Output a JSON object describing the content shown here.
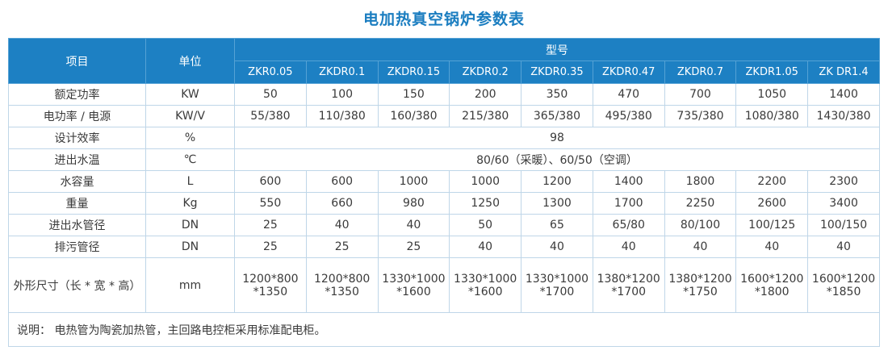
{
  "title": "电加热真空锅炉参数表",
  "table": {
    "header": {
      "item": "项目",
      "unit": "单位",
      "model_group": "型号",
      "models": [
        "ZKR0.05",
        "ZKDR0.1",
        "ZKDR0.15",
        "ZKDR0.2",
        "ZKDR0.35",
        "ZKDR0.47",
        "ZKDR0.7",
        "ZKDR1.05",
        "ZK DR1.4"
      ]
    },
    "rows": [
      {
        "item": "额定功率",
        "unit": "KW",
        "values": [
          "50",
          "100",
          "150",
          "200",
          "350",
          "470",
          "700",
          "1050",
          "1400"
        ]
      },
      {
        "item": "电功率 / 电源",
        "unit": "KW/V",
        "values": [
          "55/380",
          "110/380",
          "160/380",
          "215/380",
          "365/380",
          "495/380",
          "735/380",
          "1080/380",
          "1430/380"
        ]
      },
      {
        "item": "设计效率",
        "unit": "%",
        "span_value": "98"
      },
      {
        "item": "进出水温",
        "unit": "℃",
        "span_value": "80/60（采暖）、60/50（空调）"
      },
      {
        "item": "水容量",
        "unit": "L",
        "values": [
          "600",
          "600",
          "1000",
          "1000",
          "1200",
          "1400",
          "1800",
          "2200",
          "2300"
        ]
      },
      {
        "item": "重量",
        "unit": "Kg",
        "values": [
          "550",
          "660",
          "980",
          "1250",
          "1300",
          "1700",
          "2250",
          "2600",
          "3400"
        ]
      },
      {
        "item": "进出水管径",
        "unit": "DN",
        "values": [
          "25",
          "40",
          "40",
          "50",
          "65",
          "65/80",
          "80/100",
          "100/125",
          "100/150"
        ]
      },
      {
        "item": "排污管径",
        "unit": "DN",
        "values": [
          "25",
          "25",
          "25",
          "40",
          "40",
          "40",
          "40",
          "40",
          "40"
        ]
      },
      {
        "item": "外形尺寸（长 * 宽 * 高）",
        "unit": "mm",
        "values": [
          "1200*800\n*1350",
          "1200*800\n*1350",
          "1330*1000\n*1600",
          "1330*1000\n*1600",
          "1330*1000\n*1700",
          "1380*1200\n*1700",
          "1380*1200\n*1750",
          "1600*1200\n*1800",
          "1600*1200\n*1850"
        ]
      }
    ],
    "note": "说明： 电热管为陶瓷加热管，主回路电控柜采用标准配电柜。"
  },
  "colors": {
    "title": "#1a7dc0",
    "header_bg": "#1d80c3",
    "header_border": "#55a2d5",
    "border": "#bfd6e8",
    "text": "#3a3a3a"
  }
}
